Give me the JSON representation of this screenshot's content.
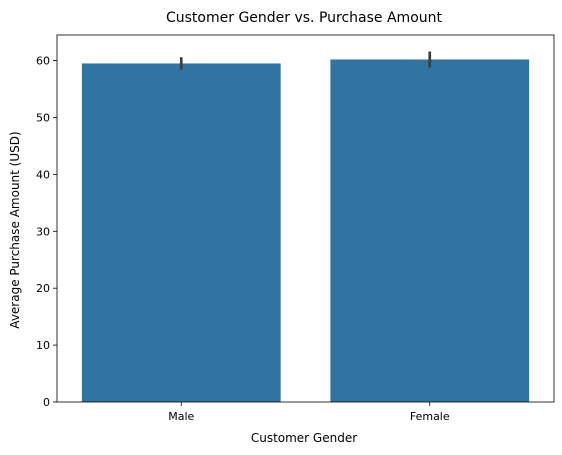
{
  "chart_data": {
    "type": "bar",
    "title": "Customer Gender vs. Purchase Amount",
    "xlabel": "Customer Gender",
    "ylabel": "Average Purchase Amount (USD)",
    "categories": [
      "Male",
      "Female"
    ],
    "values": [
      59.5,
      60.2
    ],
    "error_bars": [
      {
        "low": 58.4,
        "high": 60.6
      },
      {
        "low": 58.8,
        "high": 61.6
      }
    ],
    "ylim": [
      0,
      64.5
    ],
    "yticks": [
      0,
      10,
      20,
      30,
      40,
      50,
      60
    ],
    "grid": false,
    "legend": "none",
    "bar_color": "#3274a1",
    "errorbar_color": "#3d3d3d"
  }
}
